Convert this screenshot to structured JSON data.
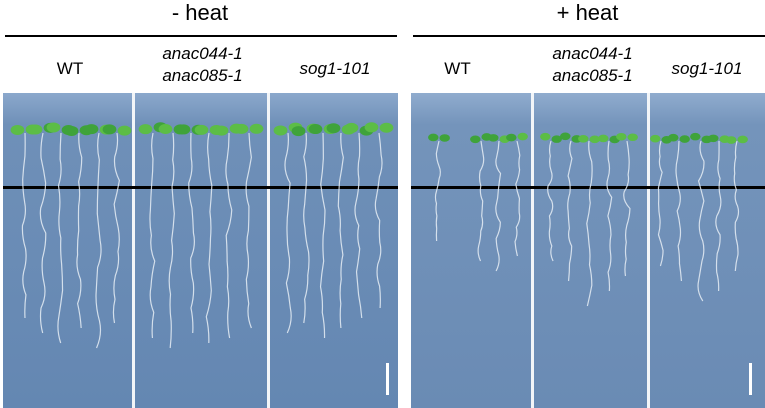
{
  "panels": [
    {
      "title": "- heat",
      "genotypes": [
        {
          "line1": "WT",
          "line2": ""
        },
        {
          "line1": "anac044-1",
          "line2": "anac085-1"
        },
        {
          "line1": "sog1-101",
          "line2": ""
        }
      ]
    },
    {
      "title": "+ heat",
      "genotypes": [
        {
          "line1": "WT",
          "line2": ""
        },
        {
          "line1": "anac044-1",
          "line2": "anac085-1"
        },
        {
          "line1": "sog1-101",
          "line2": ""
        }
      ]
    }
  ],
  "colors": {
    "plate_blue": "#6f90b8",
    "plate_dark": "#5d7ea8",
    "leaf_green": "#4caf3c",
    "root_white": "#e8eef6"
  }
}
